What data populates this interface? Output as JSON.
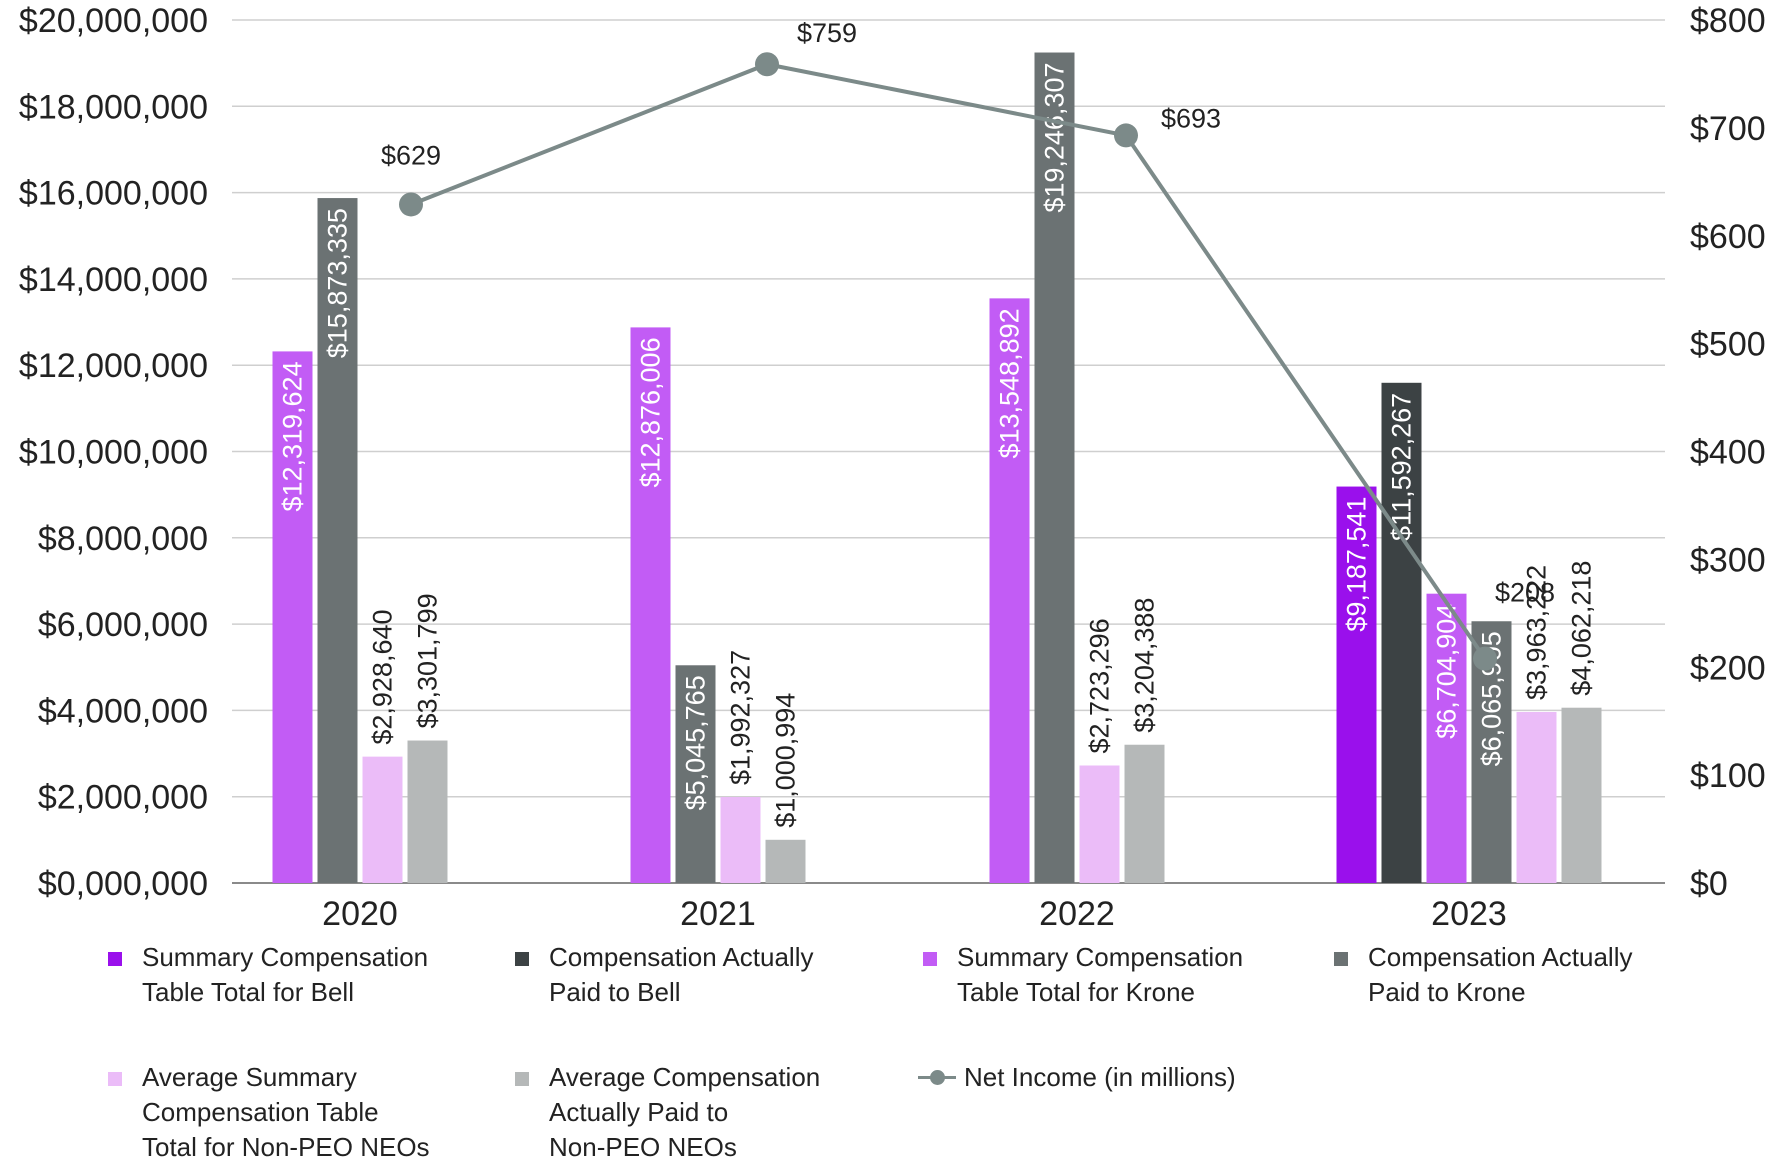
{
  "chart_data": {
    "type": "bar",
    "categories": [
      "2020",
      "2021",
      "2022",
      "2023"
    ],
    "y_left": {
      "ylim": [
        0,
        20000000
      ],
      "ticks": [
        0,
        2000000,
        4000000,
        6000000,
        8000000,
        10000000,
        12000000,
        14000000,
        16000000,
        18000000,
        20000000
      ],
      "tick_labels": [
        "$0,000,000",
        "$2,000,000",
        "$4,000,000",
        "$6,000,000",
        "$8,000,000",
        "$10,000,000",
        "$12,000,000",
        "$14,000,000",
        "$16,000,000",
        "$18,000,000",
        "$20,000,000"
      ]
    },
    "y_right": {
      "ylim": [
        0,
        800
      ],
      "ticks": [
        0,
        100,
        200,
        300,
        400,
        500,
        600,
        700,
        800
      ],
      "tick_labels": [
        "$0",
        "$100",
        "$200",
        "$300",
        "$400",
        "$500",
        "$600",
        "$700",
        "$800"
      ]
    },
    "grid": true,
    "series": [
      {
        "name": "Summary Compensation Table Total for Bell",
        "legend": "Summary Compensation\nTable Total for Bell",
        "color": "#9a10ec",
        "label_color": "#ffffff",
        "values": [
          null,
          null,
          null,
          9187541
        ],
        "labels": [
          "",
          "",
          "",
          "$9,187,541"
        ]
      },
      {
        "name": "Compensation Actually Paid to Bell",
        "legend": "Compensation Actually\nPaid to Bell",
        "color": "#3c4244",
        "label_color": "#ffffff",
        "values": [
          null,
          null,
          null,
          11592267
        ],
        "labels": [
          "",
          "",
          "",
          "$11,592,267"
        ]
      },
      {
        "name": "Summary Compensation Table Total for Krone",
        "legend": "Summary Compensation\nTable Total for Krone",
        "color": "#c25cf5",
        "label_color": "#ffffff",
        "values": [
          12319624,
          12876006,
          13548892,
          6704904
        ],
        "labels": [
          "$12,319,624",
          "$12,876,006",
          "$13,548,892",
          "$6,704,904"
        ]
      },
      {
        "name": "Compensation Actually Paid to Krone",
        "legend": "Compensation Actually\nPaid to Krone",
        "color": "#6b7273",
        "label_color": "#ffffff",
        "values": [
          15873335,
          5045765,
          19246307,
          6065905
        ],
        "labels": [
          "$15,873,335",
          "$5,045,765",
          "$19,246,307",
          "$6,065,905"
        ]
      },
      {
        "name": "Average Summary Compensation Table Total for Non-PEO NEOs",
        "legend": "Average Summary\nCompensation Table\nTotal for Non-PEO NEOs",
        "color": "#ebbcf8",
        "label_color": "#222222",
        "values": [
          2928640,
          1992327,
          2723296,
          3963222
        ],
        "labels": [
          "$2,928,640",
          "$1,992,327",
          "$2,723,296",
          "$3,963,222"
        ]
      },
      {
        "name": "Average Compensation Actually Paid to Non-PEO NEOs",
        "legend": "Average Compensation\nActually Paid to\nNon-PEO NEOs",
        "color": "#b5b8b8",
        "label_color": "#222222",
        "values": [
          3301799,
          1000994,
          3204388,
          4062218
        ],
        "labels": [
          "$3,301,799",
          "$1,000,994",
          "$3,204,388",
          "$4,062,218"
        ]
      }
    ],
    "line": {
      "name": "Net Income (in millions)",
      "axis": "right",
      "color": "#7c8a89",
      "values": [
        629,
        759,
        693,
        208
      ],
      "labels": [
        "$629",
        "$759",
        "$693",
        "$208"
      ]
    }
  }
}
